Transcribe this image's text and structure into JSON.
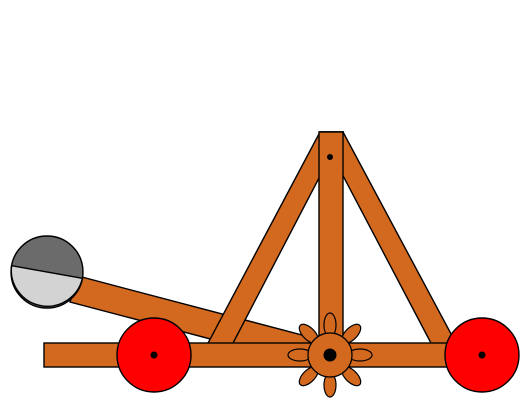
{
  "scene": {
    "subject": "catapult",
    "colors": {
      "wood": "#d2691e",
      "outline": "#000000",
      "wheel": "#ff0000",
      "ball_dark": "#6b6b6b",
      "ball_light": "#d3d3d3",
      "background": "#ffffff"
    },
    "icons": {
      "wheels": "wheel-icon",
      "gear": "gear-icon",
      "projectile": "ball-icon"
    }
  }
}
